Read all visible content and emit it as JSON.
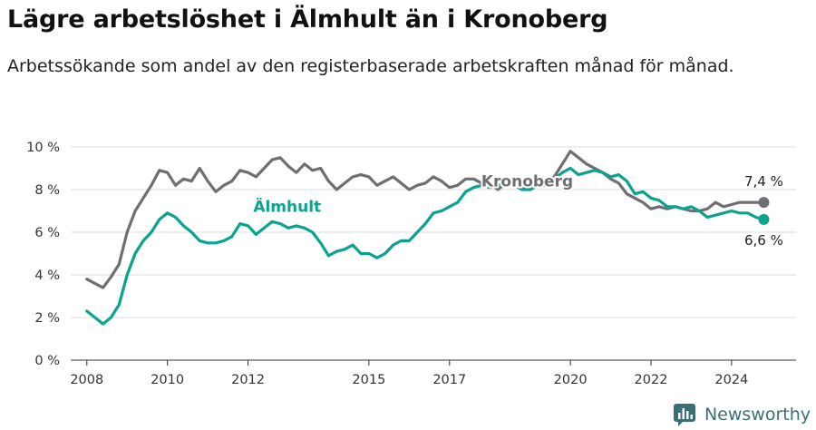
{
  "title": "Lägre arbetslöshet i Älmhult än i Kronoberg",
  "subtitle": "Arbetssökande som andel av den registerbaserade arbetskraften månad för månad.",
  "brand": {
    "name": "Newsworthy"
  },
  "colors": {
    "almhult": "#0aa38d",
    "kronoberg": "#6f6f73",
    "grid": "#dcdcdc",
    "axis": "#333333"
  },
  "chart_data": {
    "type": "line",
    "title": "Lägre arbetslöshet i Älmhult än i Kronoberg",
    "ylim": [
      0,
      10
    ],
    "xlim": [
      2007.6,
      2025.6
    ],
    "y_ticks": [
      0,
      2,
      4,
      6,
      8,
      10
    ],
    "y_tick_labels": [
      "0 %",
      "2 %",
      "4 %",
      "6 %",
      "8 %",
      "10 %"
    ],
    "x_ticks": [
      2008,
      2010,
      2012,
      2015,
      2017,
      2020,
      2022,
      2024
    ],
    "x_tick_labels": [
      "2008",
      "2010",
      "2012",
      "2015",
      "2017",
      "2020",
      "2022",
      "2024"
    ],
    "grid": true,
    "end_labels": {
      "kronoberg": "7,4 %",
      "almhult": "6,6 %"
    },
    "series": [
      {
        "name": "Kronoberg",
        "key": "kronoberg",
        "x": [
          2008.0,
          2008.2,
          2008.4,
          2008.6,
          2008.8,
          2009.0,
          2009.2,
          2009.4,
          2009.6,
          2009.8,
          2010.0,
          2010.2,
          2010.4,
          2010.6,
          2010.8,
          2011.0,
          2011.2,
          2011.4,
          2011.6,
          2011.8,
          2012.0,
          2012.2,
          2012.4,
          2012.6,
          2012.8,
          2013.0,
          2013.2,
          2013.4,
          2013.6,
          2013.8,
          2014.0,
          2014.2,
          2014.4,
          2014.6,
          2014.8,
          2015.0,
          2015.2,
          2015.4,
          2015.6,
          2015.8,
          2016.0,
          2016.2,
          2016.4,
          2016.6,
          2016.8,
          2017.0,
          2017.2,
          2017.4,
          2017.6,
          2017.8,
          2018.0,
          2018.2,
          2018.4,
          2018.6,
          2018.8,
          2019.0,
          2019.2,
          2019.4,
          2019.6,
          2019.8,
          2020.0,
          2020.2,
          2020.4,
          2020.6,
          2020.8,
          2021.0,
          2021.2,
          2021.4,
          2021.6,
          2021.8,
          2022.0,
          2022.2,
          2022.4,
          2022.6,
          2022.8,
          2023.0,
          2023.2,
          2023.4,
          2023.6,
          2023.8,
          2024.0,
          2024.2,
          2024.4,
          2024.6,
          2024.8
        ],
        "values": [
          3.8,
          3.6,
          3.4,
          3.9,
          4.5,
          6.0,
          7.0,
          7.6,
          8.2,
          8.9,
          8.8,
          8.2,
          8.5,
          8.4,
          9.0,
          8.4,
          7.9,
          8.2,
          8.4,
          8.9,
          8.8,
          8.6,
          9.0,
          9.4,
          9.5,
          9.1,
          8.8,
          9.2,
          8.9,
          9.0,
          8.4,
          8.0,
          8.3,
          8.6,
          8.7,
          8.6,
          8.2,
          8.4,
          8.6,
          8.3,
          8.0,
          8.2,
          8.3,
          8.6,
          8.4,
          8.1,
          8.2,
          8.5,
          8.5,
          8.3,
          8.3,
          8.0,
          8.3,
          8.3,
          8.1,
          8.0,
          8.3,
          8.4,
          8.6,
          9.2,
          9.8,
          9.5,
          9.2,
          9.0,
          8.8,
          8.5,
          8.3,
          7.8,
          7.6,
          7.4,
          7.1,
          7.2,
          7.1,
          7.2,
          7.1,
          7.0,
          7.0,
          7.1,
          7.4,
          7.2,
          7.3,
          7.4,
          7.4,
          7.4,
          7.4
        ]
      },
      {
        "name": "Älmhult",
        "key": "almhult",
        "x": [
          2008.0,
          2008.2,
          2008.4,
          2008.6,
          2008.8,
          2009.0,
          2009.2,
          2009.4,
          2009.6,
          2009.8,
          2010.0,
          2010.2,
          2010.4,
          2010.6,
          2010.8,
          2011.0,
          2011.2,
          2011.4,
          2011.6,
          2011.8,
          2012.0,
          2012.2,
          2012.4,
          2012.6,
          2012.8,
          2013.0,
          2013.2,
          2013.4,
          2013.6,
          2013.8,
          2014.0,
          2014.2,
          2014.4,
          2014.6,
          2014.8,
          2015.0,
          2015.2,
          2015.4,
          2015.6,
          2015.8,
          2016.0,
          2016.2,
          2016.4,
          2016.6,
          2016.8,
          2017.0,
          2017.2,
          2017.4,
          2017.6,
          2017.8,
          2018.0,
          2018.2,
          2018.4,
          2018.6,
          2018.8,
          2019.0,
          2019.2,
          2019.4,
          2019.6,
          2019.8,
          2020.0,
          2020.2,
          2020.4,
          2020.6,
          2020.8,
          2021.0,
          2021.2,
          2021.4,
          2021.6,
          2021.8,
          2022.0,
          2022.2,
          2022.4,
          2022.6,
          2022.8,
          2023.0,
          2023.2,
          2023.4,
          2023.6,
          2023.8,
          2024.0,
          2024.2,
          2024.4,
          2024.6,
          2024.8
        ],
        "values": [
          2.3,
          2.0,
          1.7,
          2.0,
          2.6,
          4.0,
          5.0,
          5.6,
          6.0,
          6.6,
          6.9,
          6.7,
          6.3,
          6.0,
          5.6,
          5.5,
          5.5,
          5.6,
          5.8,
          6.4,
          6.3,
          5.9,
          6.2,
          6.5,
          6.4,
          6.2,
          6.3,
          6.2,
          6.0,
          5.5,
          4.9,
          5.1,
          5.2,
          5.4,
          5.0,
          5.0,
          4.8,
          5.0,
          5.4,
          5.6,
          5.6,
          6.0,
          6.4,
          6.9,
          7.0,
          7.2,
          7.4,
          7.9,
          8.1,
          8.2,
          8.1,
          8.2,
          8.3,
          8.2,
          8.0,
          8.0,
          8.2,
          8.2,
          8.5,
          8.8,
          9.0,
          8.7,
          8.8,
          8.9,
          8.8,
          8.6,
          8.7,
          8.4,
          7.8,
          7.9,
          7.6,
          7.5,
          7.2,
          7.2,
          7.1,
          7.2,
          7.0,
          6.7,
          6.8,
          6.9,
          7.0,
          6.9,
          6.9,
          6.7,
          6.6
        ]
      }
    ]
  }
}
